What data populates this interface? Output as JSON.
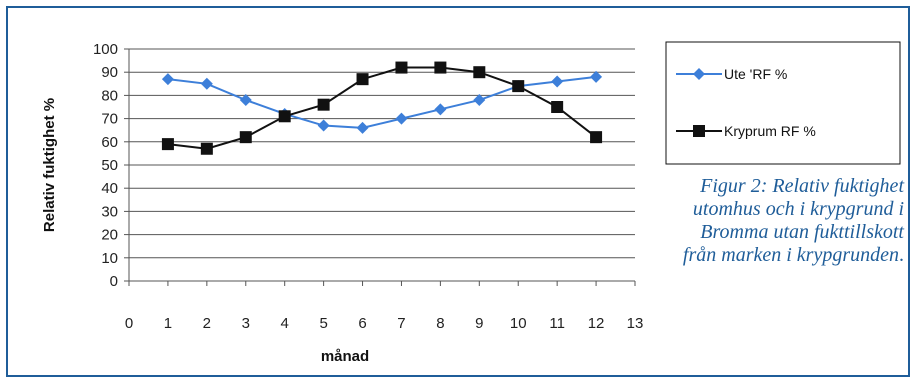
{
  "chart_data": {
    "type": "line",
    "title": "",
    "xlabel": "månad",
    "ylabel": "Relativ fuktighet %",
    "xlim": [
      0,
      13
    ],
    "ylim": [
      0,
      100
    ],
    "xticks": [
      "0",
      "1",
      "2",
      "3",
      "4",
      "5",
      "6",
      "7",
      "8",
      "9",
      "10",
      "11",
      "12",
      "13"
    ],
    "yticks": [
      "0",
      "10",
      "20",
      "30",
      "40",
      "50",
      "60",
      "70",
      "80",
      "90",
      "100"
    ],
    "grid": true,
    "legend_position": "right",
    "x": [
      1,
      2,
      3,
      4,
      5,
      6,
      7,
      8,
      9,
      10,
      11,
      12
    ],
    "series": [
      {
        "name": "Ute 'RF %",
        "marker": "diamond",
        "color": "#3d7fd9",
        "values": [
          87,
          85,
          78,
          72,
          67,
          66,
          70,
          74,
          78,
          84,
          86,
          88
        ]
      },
      {
        "name": "Kryprum RF %",
        "marker": "square",
        "color": "#111111",
        "values": [
          59,
          57,
          62,
          71,
          76,
          87,
          92,
          92,
          90,
          84,
          75,
          62
        ]
      }
    ]
  },
  "caption": {
    "text": "Figur 2: Relativ fuktighet utomhus och i krypgrund i Bromma utan fukttillskott från marken i krypgrunden",
    "end": "."
  }
}
